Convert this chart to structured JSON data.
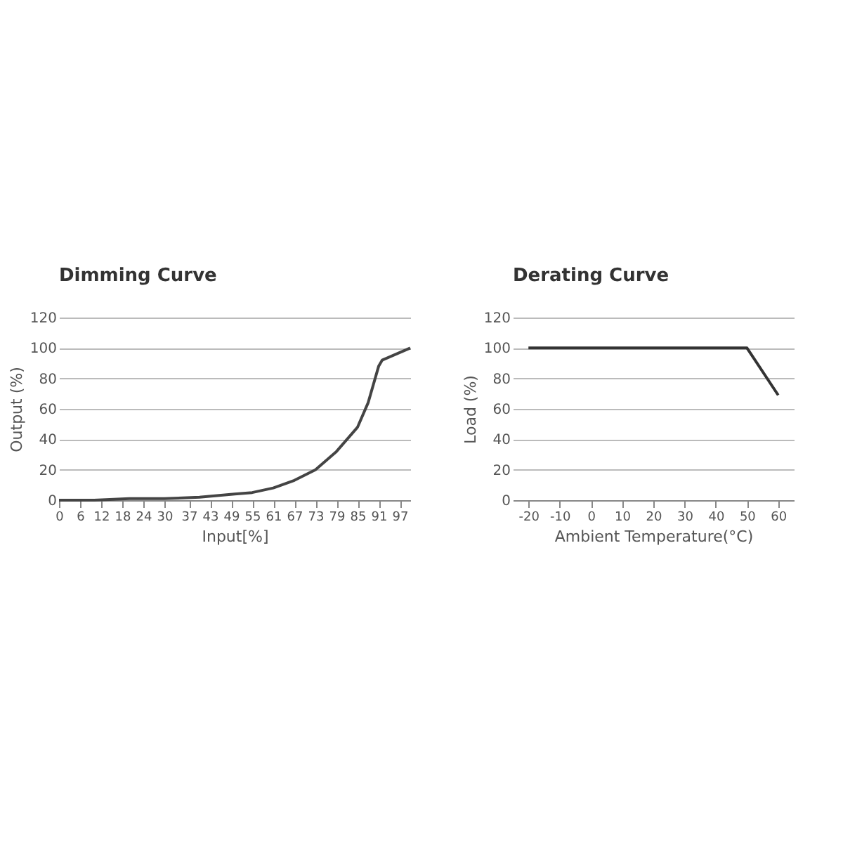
{
  "chart_data": [
    {
      "type": "line",
      "title": "Dimming Curve",
      "xlabel": "Input[%]",
      "ylabel": "Output (%)",
      "x": [
        0,
        10,
        20,
        30,
        40,
        50,
        55,
        61,
        67,
        73,
        79,
        85,
        88,
        91,
        92,
        100
      ],
      "series": [
        {
          "color": "#444444",
          "values": [
            0,
            0,
            1,
            1,
            2,
            4,
            5,
            8,
            13,
            20,
            32,
            48,
            64,
            88,
            92,
            100
          ]
        }
      ],
      "xlim": [
        0,
        100
      ],
      "xticks": [
        0,
        6,
        12,
        18,
        24,
        30,
        37,
        43,
        49,
        55,
        61,
        67,
        73,
        79,
        85,
        91,
        97
      ],
      "ylim": [
        0,
        120
      ],
      "yticks": [
        0,
        20,
        40,
        60,
        80,
        100,
        120
      ],
      "grid": "y",
      "marker": "none",
      "line_style": "solid"
    },
    {
      "type": "line",
      "title": "Derating Curve",
      "xlabel": "Ambient Temperature(°C)",
      "ylabel": "Load (%)",
      "x": [
        -20,
        50,
        60
      ],
      "series": [
        {
          "color": "#333333",
          "values": [
            100,
            100,
            69
          ]
        }
      ],
      "xlim": [
        -25,
        65
      ],
      "xticks": [
        -20,
        -10,
        0,
        10,
        20,
        30,
        40,
        50,
        60
      ],
      "ylim": [
        0,
        120
      ],
      "yticks": [
        0,
        20,
        40,
        60,
        80,
        100,
        120
      ],
      "grid": "y",
      "marker": "none",
      "line_style": "solid"
    }
  ]
}
